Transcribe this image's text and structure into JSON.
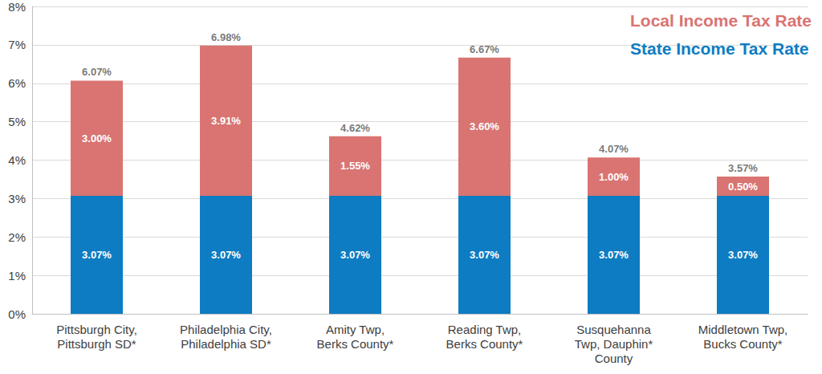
{
  "chart_data": {
    "type": "bar",
    "stacked": true,
    "data_labels": true,
    "grid": true,
    "legend": "top-right",
    "categories": [
      "Pittsburgh City,\nPittsburgh SD*",
      "Philadelphia City,\nPhiladelphia SD*",
      "Amity Twp,\nBerks County*",
      "Reading Twp,\nBerks County*",
      "Susquehanna\nTwp, Dauphin*\nCounty",
      "Middletown Twp,\nBucks County*"
    ],
    "series": [
      {
        "name": "State Income Tax Rate",
        "color": "#0e7cc2",
        "values": [
          3.07,
          3.07,
          3.07,
          3.07,
          3.07,
          3.07
        ],
        "value_labels": [
          "3.07%",
          "3.07%",
          "3.07%",
          "3.07%",
          "3.07%",
          "3.07%"
        ]
      },
      {
        "name": "Local Income Tax Rate",
        "color": "#d97472",
        "values": [
          3.0,
          3.91,
          1.55,
          3.6,
          1.0,
          0.5
        ],
        "value_labels": [
          "3.00%",
          "3.91%",
          "1.55%",
          "3.60%",
          "1.00%",
          "0.50%"
        ]
      }
    ],
    "totals": [
      6.07,
      6.98,
      4.62,
      6.67,
      4.07,
      3.57
    ],
    "total_labels": [
      "6.07%",
      "6.98%",
      "4.62%",
      "6.67%",
      "4.07%",
      "3.57%"
    ],
    "ylim": [
      0,
      8
    ],
    "yticks": [
      {
        "value": 0,
        "label": "0%"
      },
      {
        "value": 1,
        "label": "1%"
      },
      {
        "value": 2,
        "label": "2%"
      },
      {
        "value": 3,
        "label": "3%"
      },
      {
        "value": 4,
        "label": "4%"
      },
      {
        "value": 5,
        "label": "5%"
      },
      {
        "value": 6,
        "label": "6%"
      },
      {
        "value": 7,
        "label": "7%"
      },
      {
        "value": 8,
        "label": "8%"
      }
    ]
  }
}
